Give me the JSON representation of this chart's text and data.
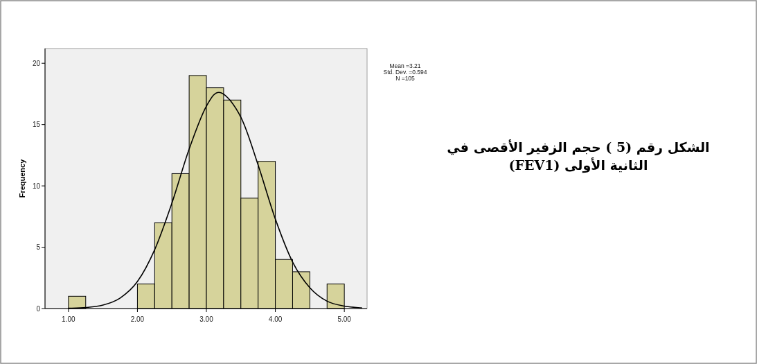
{
  "chart_data": {
    "type": "histogram",
    "ylabel": "Frequency",
    "bins": [
      1.0,
      1.25,
      1.5,
      1.75,
      2.0,
      2.25,
      2.5,
      2.75,
      3.0,
      3.25,
      3.5,
      3.75,
      4.0,
      4.25,
      4.5,
      4.75,
      5.0
    ],
    "values": [
      1,
      0,
      0,
      0,
      2,
      7,
      11,
      19,
      18,
      17,
      9,
      12,
      4,
      3,
      0,
      2
    ],
    "color": "#d6d39b",
    "xlim": [
      0.66,
      5.33
    ],
    "ylim": [
      0,
      21.2
    ],
    "xticks": [
      {
        "value": 1,
        "label": "1.00"
      },
      {
        "value": 2,
        "label": "2.00"
      },
      {
        "value": 3,
        "label": "3.00"
      },
      {
        "value": 4,
        "label": "4.00"
      },
      {
        "value": 5,
        "label": "5.00"
      }
    ],
    "yticks": [
      0,
      5,
      10,
      15,
      20
    ],
    "series": [
      {
        "type": "line",
        "color": "#000000",
        "x": [
          1.0,
          1.25,
          1.5,
          1.75,
          2.0,
          2.25,
          2.5,
          2.75,
          3.0,
          3.21,
          3.5,
          3.75,
          4.0,
          4.25,
          4.5,
          4.75,
          5.0,
          5.25
        ],
        "values": [
          0.02,
          0.08,
          0.28,
          0.86,
          2.2,
          4.8,
          8.6,
          13.0,
          16.5,
          17.6,
          15.6,
          11.7,
          7.3,
          3.8,
          1.7,
          0.6,
          0.2,
          0.05
        ]
      }
    ],
    "annotations": [
      "Mean =3.21",
      "Std. Dev. =0.594",
      "N =105",
      "الشكل رقم (5 ) حجم الزفير الأقصى في الثانية الأولى (FEV1)"
    ]
  }
}
